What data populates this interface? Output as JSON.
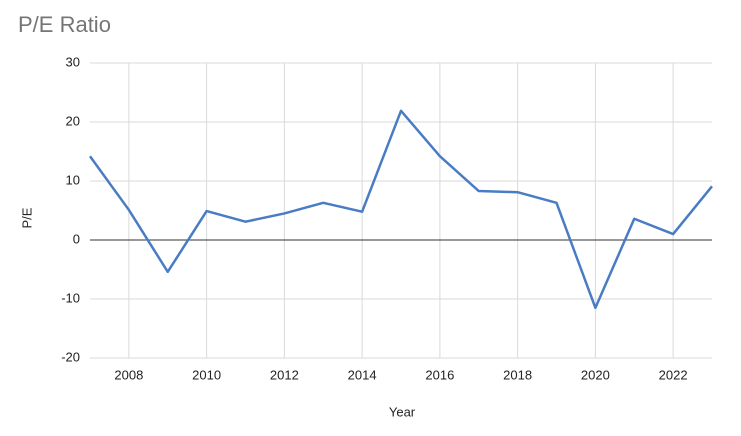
{
  "chart_data": {
    "type": "line",
    "title": "P/E Ratio",
    "x_label": "Year",
    "y_label": "P/E",
    "x": [
      2007,
      2008,
      2009,
      2010,
      2011,
      2012,
      2013,
      2014,
      2015,
      2016,
      2017,
      2018,
      2019,
      2020,
      2021,
      2022,
      2023
    ],
    "series": [
      {
        "name": "P/E",
        "color": "#4a7cc4",
        "values": [
          14.2,
          5.1,
          -5.4,
          4.9,
          3.1,
          4.5,
          6.3,
          4.8,
          21.9,
          14.2,
          8.3,
          8.1,
          6.3,
          -11.5,
          3.6,
          1.0,
          9.1
        ]
      }
    ],
    "xlim": [
      2007,
      2023
    ],
    "xticks": [
      2008,
      2010,
      2012,
      2014,
      2016,
      2018,
      2020,
      2022
    ],
    "ylim": [
      -20,
      30
    ],
    "yticks": [
      -20,
      -10,
      0,
      10,
      20,
      30
    ],
    "grid": true
  }
}
